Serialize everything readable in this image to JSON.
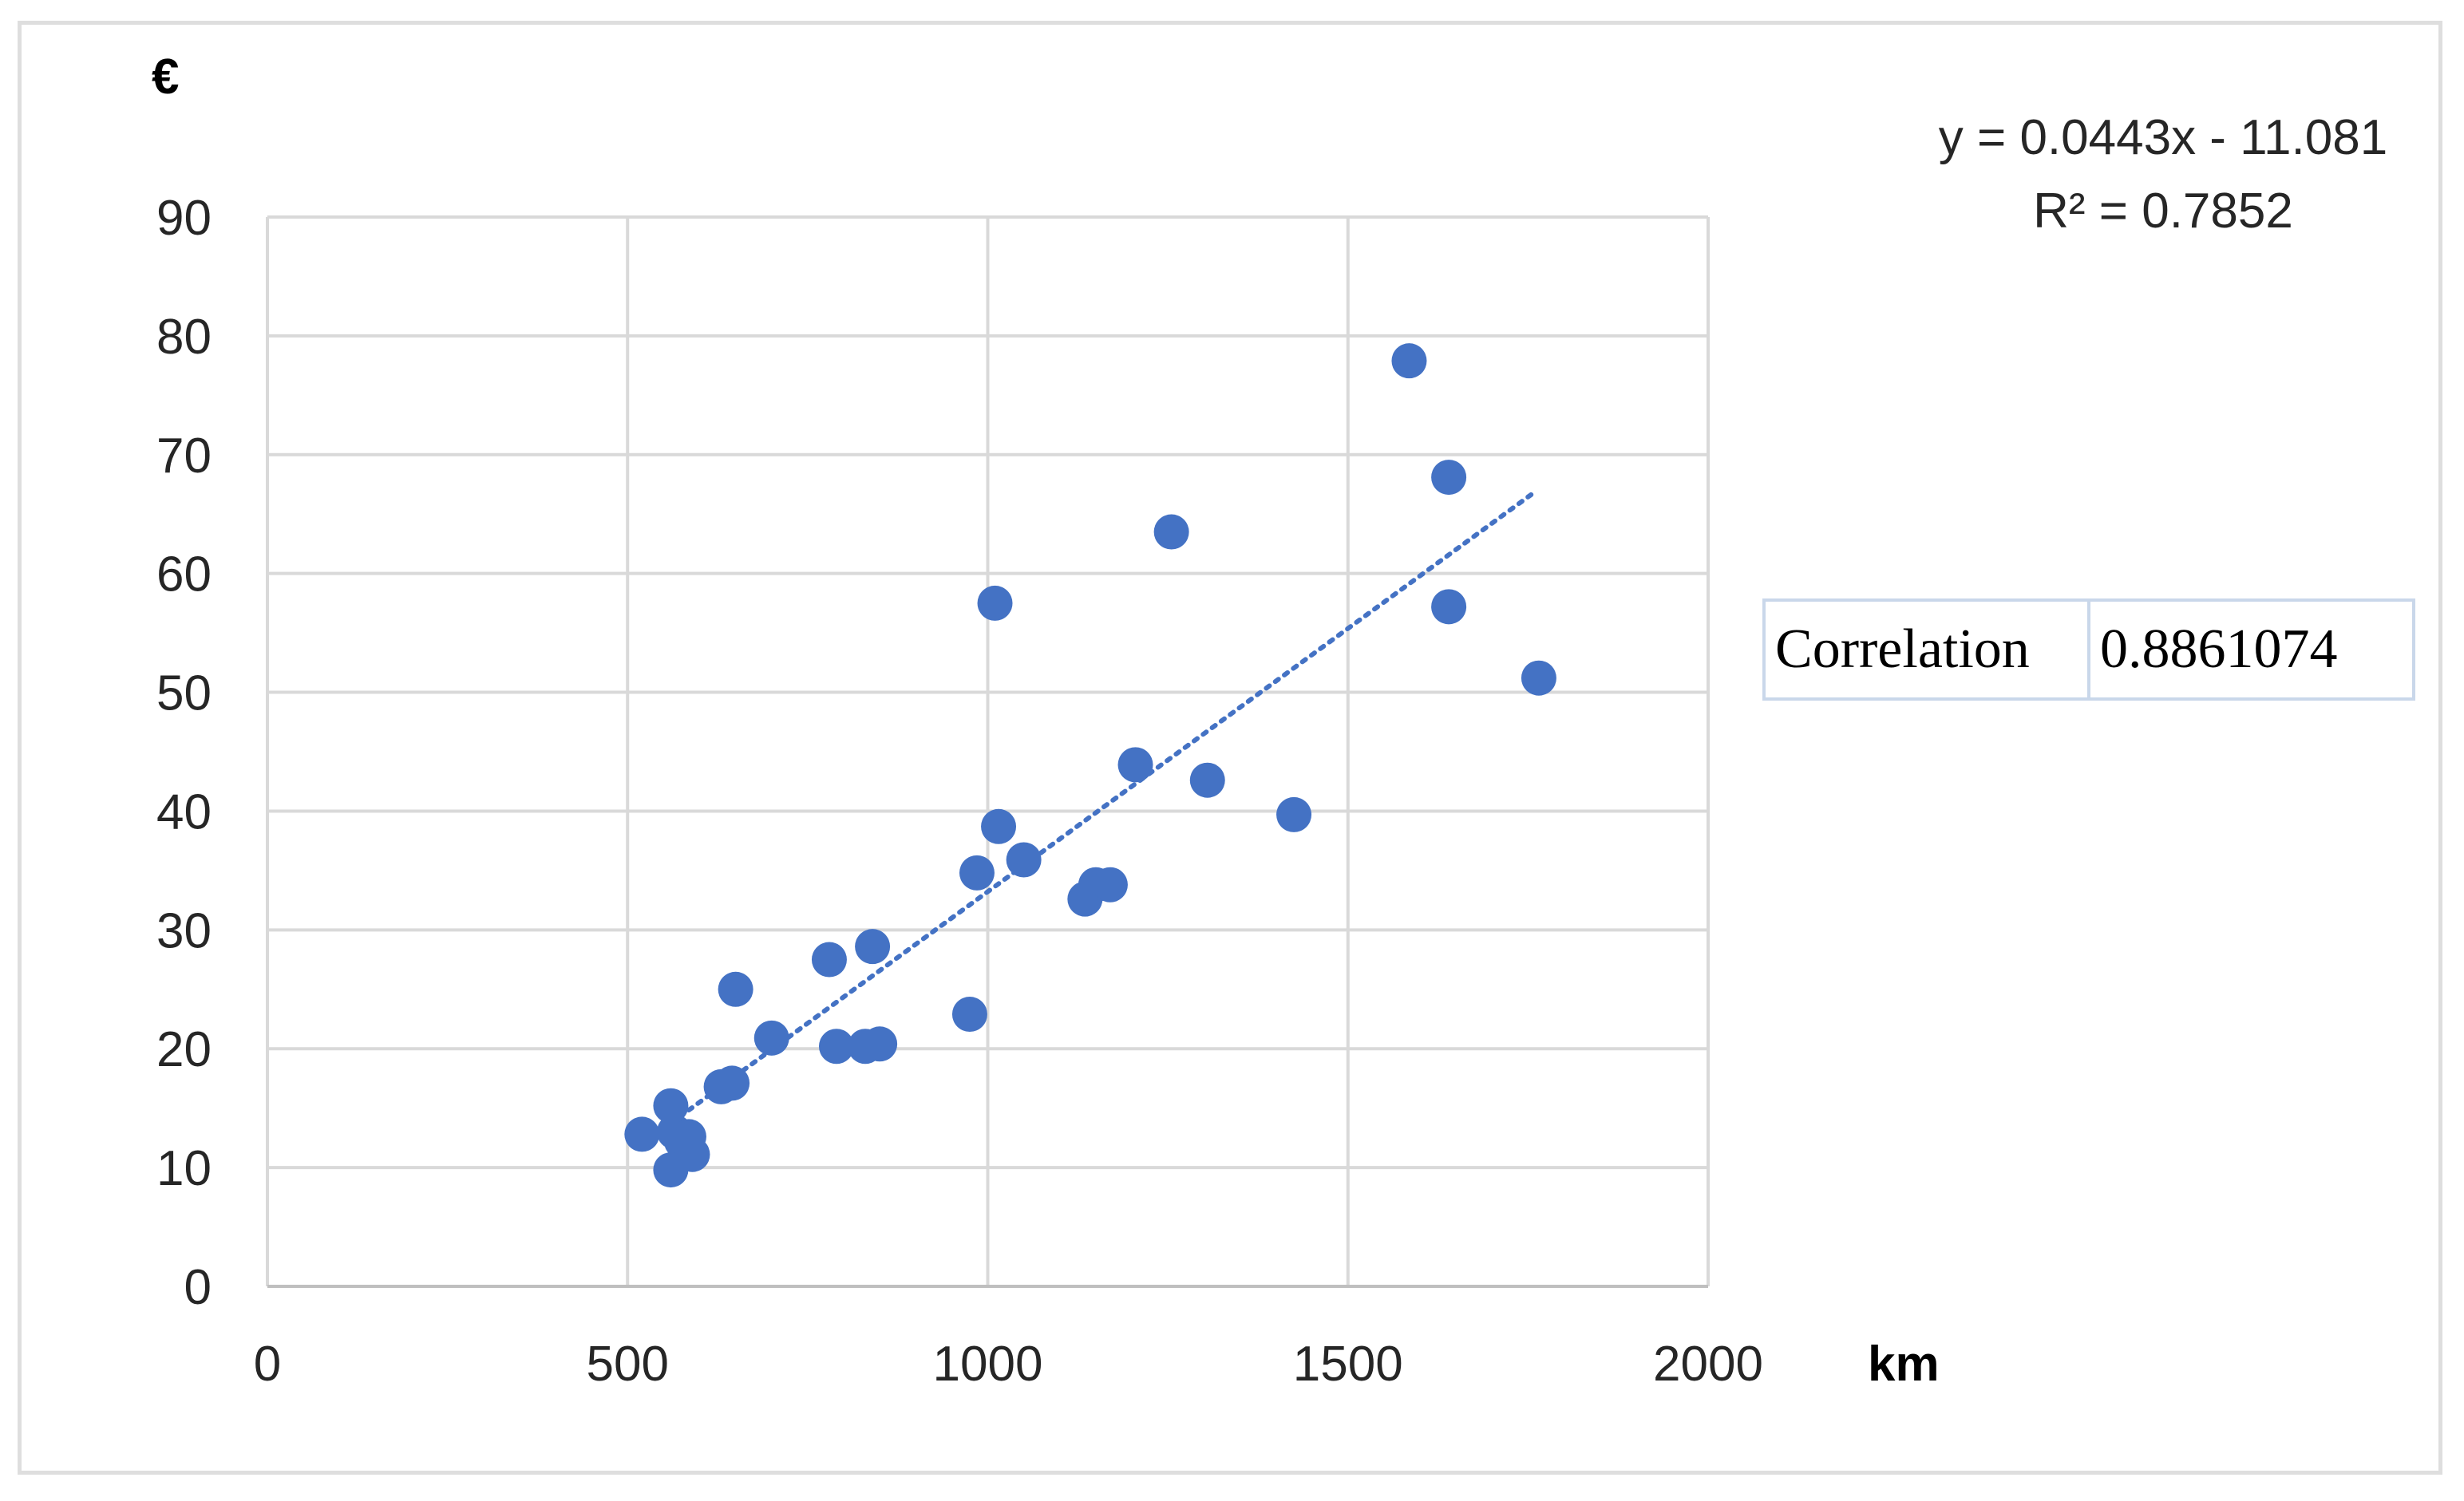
{
  "chart_data": {
    "type": "scatter",
    "title": "",
    "xlabel": "km",
    "ylabel": "€",
    "xlim": [
      0,
      2000
    ],
    "ylim": [
      0,
      90
    ],
    "xticks": [
      0,
      500,
      1000,
      1500,
      2000
    ],
    "yticks": [
      0,
      10,
      20,
      30,
      40,
      50,
      60,
      70,
      80,
      90
    ],
    "grid": true,
    "legend": "none",
    "series": [
      {
        "color": "#4472c4",
        "points": [
          {
            "x": 520,
            "y": 12.8
          },
          {
            "x": 560,
            "y": 15.2
          },
          {
            "x": 565,
            "y": 13.0
          },
          {
            "x": 575,
            "y": 12.2
          },
          {
            "x": 585,
            "y": 12.6
          },
          {
            "x": 560,
            "y": 9.8
          },
          {
            "x": 590,
            "y": 11.1
          },
          {
            "x": 630,
            "y": 16.8
          },
          {
            "x": 645,
            "y": 17.1
          },
          {
            "x": 650,
            "y": 25.0
          },
          {
            "x": 700,
            "y": 20.9
          },
          {
            "x": 780,
            "y": 27.5
          },
          {
            "x": 790,
            "y": 20.2
          },
          {
            "x": 830,
            "y": 20.2
          },
          {
            "x": 840,
            "y": 28.6
          },
          {
            "x": 850,
            "y": 20.4
          },
          {
            "x": 975,
            "y": 22.9
          },
          {
            "x": 985,
            "y": 34.8
          },
          {
            "x": 1010,
            "y": 57.5
          },
          {
            "x": 1015,
            "y": 38.7
          },
          {
            "x": 1050,
            "y": 35.9
          },
          {
            "x": 1135,
            "y": 32.6
          },
          {
            "x": 1150,
            "y": 33.8
          },
          {
            "x": 1170,
            "y": 33.8
          },
          {
            "x": 1205,
            "y": 43.9
          },
          {
            "x": 1255,
            "y": 63.5
          },
          {
            "x": 1305,
            "y": 42.6
          },
          {
            "x": 1425,
            "y": 39.7
          },
          {
            "x": 1585,
            "y": 77.9
          },
          {
            "x": 1640,
            "y": 68.1
          },
          {
            "x": 1640,
            "y": 57.2
          },
          {
            "x": 1765,
            "y": 51.2
          }
        ]
      }
    ],
    "trendline": {
      "type": "linear",
      "style": "dotted",
      "color": "#4472c4",
      "slope": 0.0443,
      "intercept": -11.081,
      "x_range": [
        560,
        1755
      ],
      "equation_label": "y = 0.0443x - 11.081",
      "r2_label": "R² = 0.7852"
    }
  },
  "correlation_table": {
    "label": "Correlation",
    "value": "0.8861074"
  },
  "colors": {
    "marker": "#4472c4",
    "grid": "#d9d9d9",
    "frame": "#dedede",
    "table_border": "#c9d7ea"
  }
}
